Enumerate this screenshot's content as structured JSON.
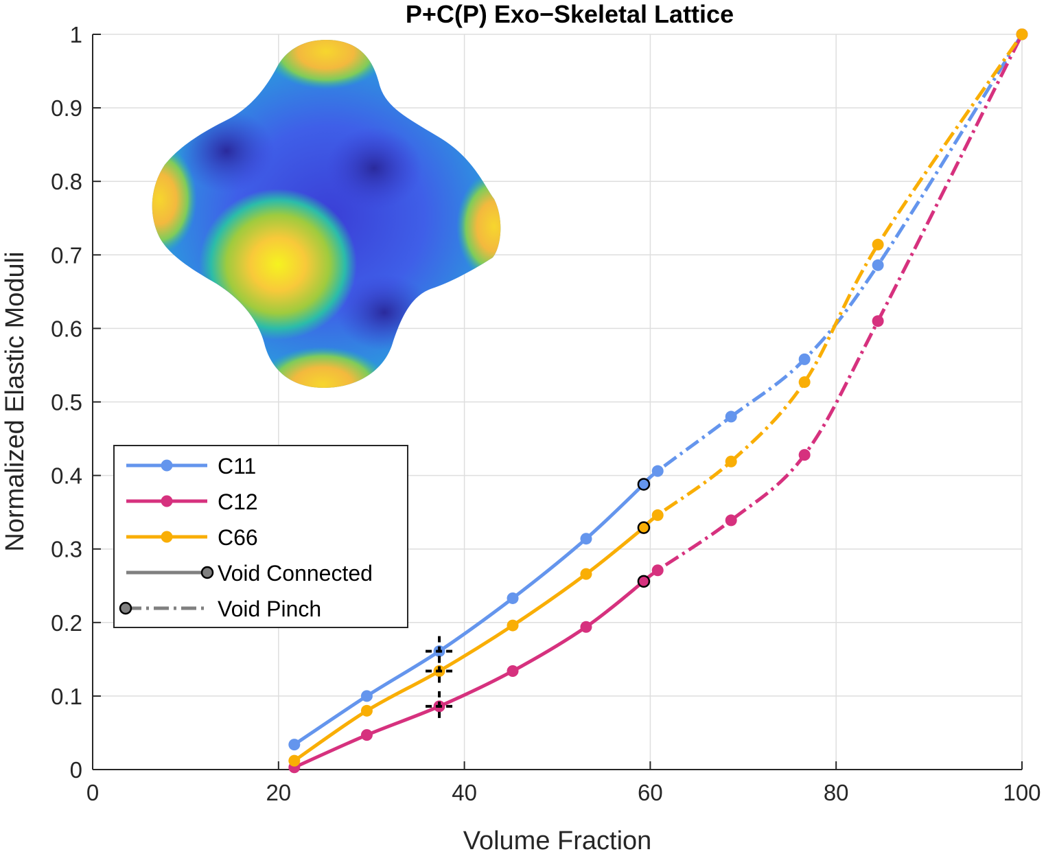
{
  "chart_data": {
    "type": "line",
    "title": "P+C(P) Exo−Skeletal Lattice",
    "xlabel": "Volume Fraction",
    "ylabel": "Normalized Elastic Moduli",
    "xlim": [
      0,
      100
    ],
    "ylim": [
      0,
      1
    ],
    "xticks": [
      0,
      20,
      40,
      60,
      80,
      100
    ],
    "yticks": [
      0,
      0.1,
      0.2,
      0.3,
      0.4,
      0.5,
      0.6,
      0.7,
      0.8,
      0.9,
      1
    ],
    "xtick_labels": [
      "0",
      "20",
      "40",
      "60",
      "80",
      "100"
    ],
    "ytick_labels": [
      "0",
      "0.1",
      "0.2",
      "0.3",
      "0.4",
      "0.5",
      "0.6",
      "0.7",
      "0.8",
      "0.9",
      "1"
    ],
    "grid": true,
    "legend_position": "lower-left",
    "transition_x": 59.3,
    "series": [
      {
        "name": "C11",
        "color": "#6495ED",
        "connected": {
          "x": [
            21.7,
            29.5,
            37.3,
            45.2,
            53.1,
            59.3
          ],
          "y": [
            0.034,
            0.1,
            0.161,
            0.233,
            0.314,
            0.388
          ]
        },
        "pinch": {
          "x": [
            59.3,
            60.8,
            68.7,
            76.6,
            84.5,
            100
          ],
          "y": [
            0.388,
            0.406,
            0.48,
            0.558,
            0.686,
            1.0
          ]
        },
        "marker_x": 37.3,
        "marker_y": 0.161
      },
      {
        "name": "C12",
        "color": "#D6317E",
        "connected": {
          "x": [
            21.7,
            29.5,
            37.3,
            45.2,
            53.1,
            59.3
          ],
          "y": [
            0.003,
            0.047,
            0.086,
            0.134,
            0.194,
            0.256
          ]
        },
        "pinch": {
          "x": [
            59.3,
            60.8,
            68.7,
            76.6,
            84.5,
            100
          ],
          "y": [
            0.256,
            0.271,
            0.339,
            0.428,
            0.61,
            1.0
          ]
        },
        "marker_x": 37.3,
        "marker_y": 0.086
      },
      {
        "name": "C66",
        "color": "#F9AE05",
        "connected": {
          "x": [
            21.7,
            29.5,
            37.3,
            45.2,
            53.1,
            59.3
          ],
          "y": [
            0.012,
            0.08,
            0.134,
            0.196,
            0.266,
            0.329
          ]
        },
        "pinch": {
          "x": [
            59.3,
            60.8,
            68.7,
            76.6,
            84.5,
            100
          ],
          "y": [
            0.329,
            0.346,
            0.419,
            0.527,
            0.714,
            1.0
          ]
        },
        "marker_x": 37.3,
        "marker_y": 0.134
      }
    ],
    "legend": [
      {
        "label": "C11",
        "color": "#6495ED",
        "style": "solid-dot"
      },
      {
        "label": "C12",
        "color": "#D6317E",
        "style": "solid-dot"
      },
      {
        "label": "C66",
        "color": "#F9AE05",
        "style": "solid-dot"
      },
      {
        "label": "Void Connected",
        "color": "#808080",
        "style": "solid-end-circle"
      },
      {
        "label": "Void Pinch",
        "color": "#808080",
        "style": "dashed-start-circle"
      }
    ]
  }
}
